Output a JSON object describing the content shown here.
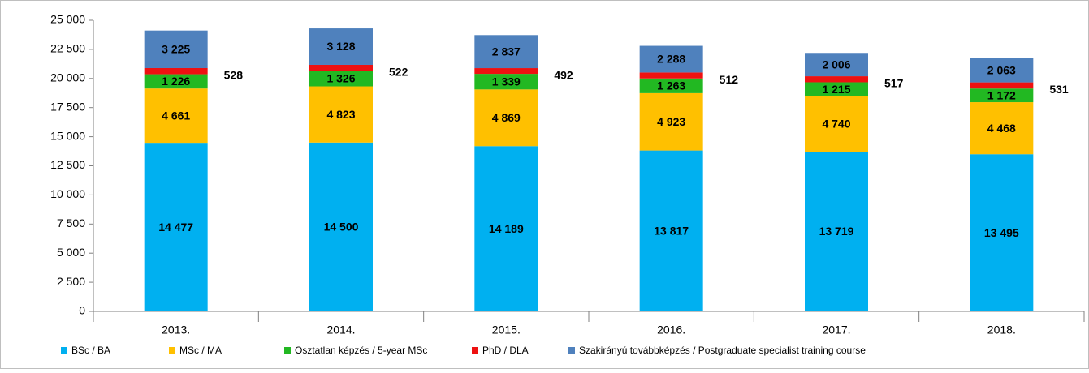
{
  "chart_data": {
    "type": "stacked_bar",
    "categories": [
      "2013.",
      "2014.",
      "2015.",
      "2016.",
      "2017.",
      "2018."
    ],
    "series": [
      {
        "name": "BSc / BA",
        "color": "#00b0f0",
        "values": [
          14477,
          14500,
          14189,
          13817,
          13719,
          13495
        ],
        "value_labels": [
          "14 477",
          "14 500",
          "14 189",
          "13 817",
          "13 719",
          "13 495"
        ]
      },
      {
        "name": "MSc / MA",
        "color": "#ffc000",
        "values": [
          4661,
          4823,
          4869,
          4923,
          4740,
          4468
        ],
        "value_labels": [
          "4 661",
          "4 823",
          "4 869",
          "4 923",
          "4 740",
          "4 468"
        ]
      },
      {
        "name": "Osztatlan képzés / 5-year MSc",
        "color": "#22b822",
        "values": [
          1226,
          1326,
          1339,
          1263,
          1215,
          1172
        ],
        "value_labels": [
          "1 226",
          "1 326",
          "1 339",
          "1 263",
          "1 215",
          "1 172"
        ]
      },
      {
        "name": "PhD / DLA",
        "color": "#ee1111",
        "values": [
          528,
          522,
          492,
          512,
          517,
          531
        ],
        "value_labels": [
          "528",
          "522",
          "492",
          "512",
          "517",
          "531"
        ]
      },
      {
        "name": "Szakirányú továbbképzés / Postgraduate specialist training course",
        "color": "#4f81bd",
        "values": [
          3225,
          3128,
          2837,
          2288,
          2006,
          2063
        ],
        "value_labels": [
          "3 225",
          "3 128",
          "2 837",
          "2 288",
          "2 006",
          "2 063"
        ]
      }
    ],
    "ylim": [
      0,
      25000
    ],
    "yticks": [
      0,
      {
        "value": 2500,
        "label": "2 500"
      },
      {
        "value": 5000,
        "label": "5 000"
      },
      {
        "value": 7500,
        "label": "7 500"
      },
      {
        "value": 10000,
        "label": "10 000"
      },
      {
        "value": 12500,
        "label": "12 500"
      },
      {
        "value": 15000,
        "label": "15 000"
      },
      {
        "value": 17500,
        "label": "17 500"
      },
      {
        "value": 20000,
        "label": "20 000"
      },
      {
        "value": 22500,
        "label": "22 500"
      },
      {
        "value": 25000,
        "label": "25 000"
      }
    ],
    "legend": "bottom"
  }
}
